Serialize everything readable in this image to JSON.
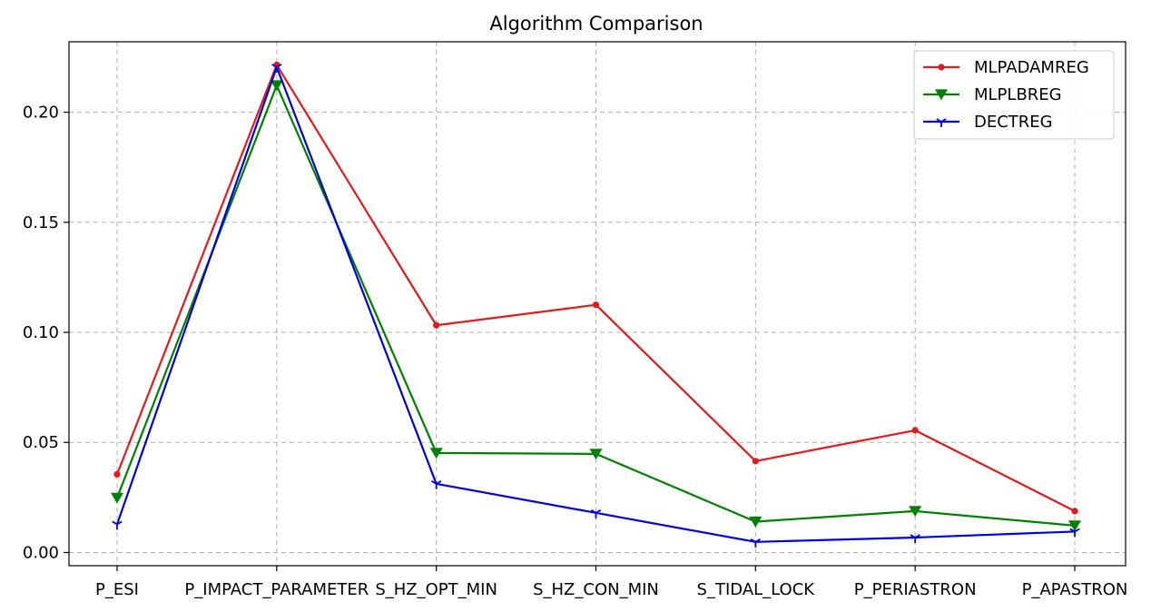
{
  "chart_data": {
    "type": "line",
    "title": "Algorithm Comparison",
    "xlabel": "",
    "ylabel": "",
    "categories": [
      "P_ESI",
      "P_IMPACT_PARAMETER",
      "S_HZ_OPT_MIN",
      "S_HZ_CON_MIN",
      "S_TIDAL_LOCK",
      "P_PERIASTRON",
      "P_APASTRON"
    ],
    "ylim": [
      -0.006,
      0.232
    ],
    "yticks": [
      0.0,
      0.05,
      0.1,
      0.15,
      0.2
    ],
    "ytick_labels": [
      "0.00",
      "0.05",
      "0.10",
      "0.15",
      "0.20"
    ],
    "grid": true,
    "legend_position": "top-right",
    "series": [
      {
        "name": "MLPADAMREG",
        "color": "#e31a1c",
        "marker": "point",
        "values": [
          0.0355,
          0.2215,
          0.1032,
          0.1125,
          0.0415,
          0.0555,
          0.0188
        ]
      },
      {
        "name": "MLPLBREG",
        "color": "#008000",
        "marker": "triangle-down",
        "values": [
          0.0248,
          0.2122,
          0.0452,
          0.0448,
          0.014,
          0.0188,
          0.0122
        ]
      },
      {
        "name": "DECTREG",
        "color": "#0000dd",
        "marker": "tri-down",
        "values": [
          0.0128,
          0.2205,
          0.0312,
          0.018,
          0.0048,
          0.0068,
          0.0095
        ]
      }
    ]
  }
}
